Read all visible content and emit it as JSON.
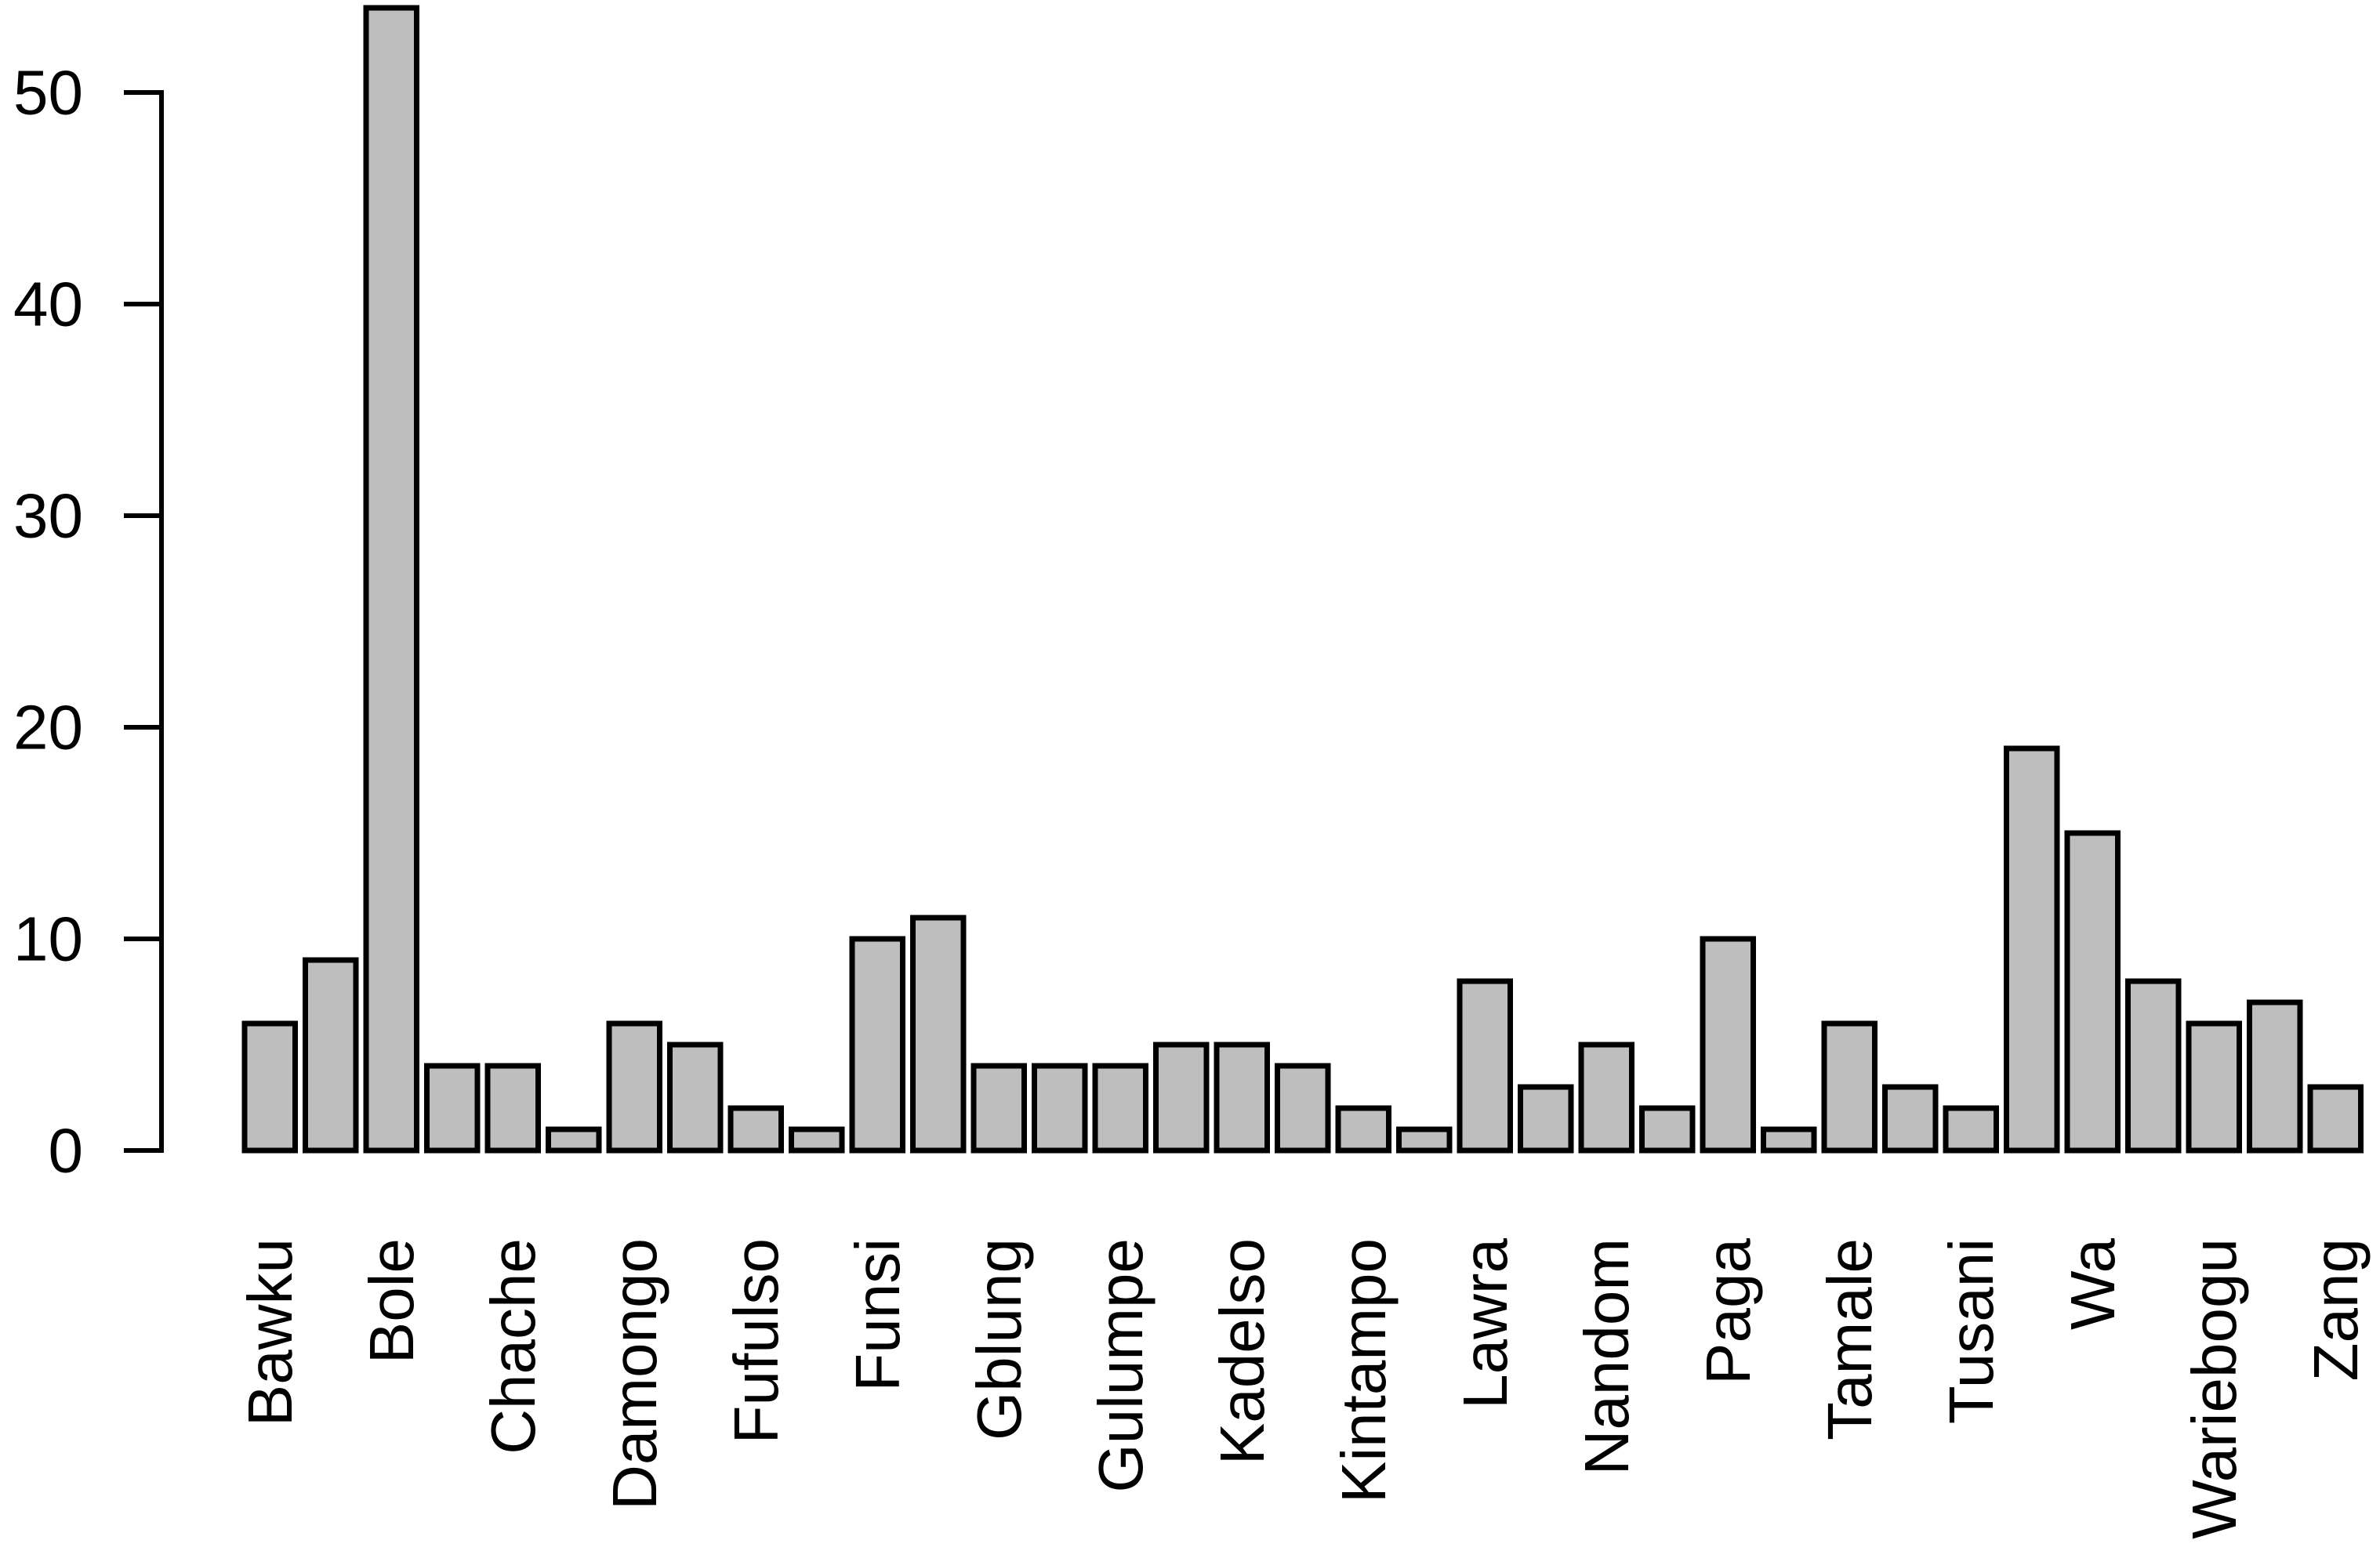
{
  "chart_data": {
    "type": "bar",
    "title": "",
    "xlabel": "",
    "ylabel": "",
    "grid": false,
    "legend": null,
    "background": "#FFFFFF",
    "axis_color": "#000000",
    "bar_fill": "#BEBEBE",
    "bar_stroke": "#000000",
    "ylim": [
      0,
      54
    ],
    "y_ticks": [
      0,
      10,
      20,
      30,
      40,
      50
    ],
    "x_tick_label_rotation": -90,
    "labeled_categories": [
      "Bawku",
      "Bole",
      "Chache",
      "Damongo",
      "Fufulso",
      "Funsi",
      "Gblung",
      "Gulumpe",
      "Kadelso",
      "Kintampo",
      "Lawra",
      "Nandom",
      "Paga",
      "Tamale",
      "Tusani",
      "Wa",
      "Wariebogu",
      "Zang"
    ],
    "bars": [
      {
        "label": "Bawku",
        "value": 6
      },
      {
        "label": "",
        "value": 9
      },
      {
        "label": "Bole",
        "value": 54
      },
      {
        "label": "",
        "value": 4
      },
      {
        "label": "Chache",
        "value": 4
      },
      {
        "label": "",
        "value": 1
      },
      {
        "label": "Damongo",
        "value": 6
      },
      {
        "label": "",
        "value": 5
      },
      {
        "label": "Fufulso",
        "value": 2
      },
      {
        "label": "",
        "value": 1
      },
      {
        "label": "Funsi",
        "value": 10
      },
      {
        "label": "",
        "value": 11
      },
      {
        "label": "Gblung",
        "value": 4
      },
      {
        "label": "",
        "value": 4
      },
      {
        "label": "Gulumpe",
        "value": 4
      },
      {
        "label": "",
        "value": 5
      },
      {
        "label": "Kadelso",
        "value": 5
      },
      {
        "label": "",
        "value": 4
      },
      {
        "label": "Kintampo",
        "value": 2
      },
      {
        "label": "",
        "value": 1
      },
      {
        "label": "Lawra",
        "value": 8
      },
      {
        "label": "",
        "value": 3
      },
      {
        "label": "Nandom",
        "value": 5
      },
      {
        "label": "",
        "value": 2
      },
      {
        "label": "Paga",
        "value": 10
      },
      {
        "label": "",
        "value": 1
      },
      {
        "label": "Tamale",
        "value": 6
      },
      {
        "label": "",
        "value": 3
      },
      {
        "label": "Tusani",
        "value": 2
      },
      {
        "label": "",
        "value": 19
      },
      {
        "label": "Wa",
        "value": 15
      },
      {
        "label": "",
        "value": 8
      },
      {
        "label": "Wariebogu",
        "value": 6
      },
      {
        "label": "",
        "value": 7
      },
      {
        "label": "Zang",
        "value": 3
      }
    ]
  }
}
